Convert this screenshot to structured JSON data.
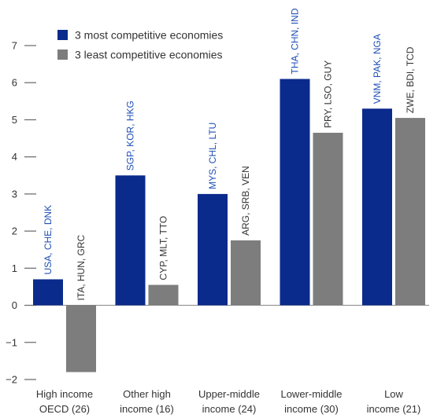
{
  "chart_data": {
    "type": "bar",
    "title": "",
    "xlabel": "",
    "ylabel": "",
    "ylim": [
      -2,
      7
    ],
    "yticks": [
      7,
      6,
      5,
      4,
      3,
      2,
      1,
      0,
      -1,
      -2
    ],
    "ytick_labels": [
      "7",
      "6",
      "5",
      "4",
      "3",
      "2",
      "1",
      "0",
      "−1",
      "−2"
    ],
    "grid": false,
    "legend_position": "top-left",
    "categories": [
      {
        "line1": "High income",
        "line2": "OECD (26)"
      },
      {
        "line1": "Other high",
        "line2": "income (16)"
      },
      {
        "line1": "Upper-middle",
        "line2": "income (24)"
      },
      {
        "line1": "Lower-middle",
        "line2": "income (30)"
      },
      {
        "line1": "Low",
        "line2": "income (21)"
      }
    ],
    "series": [
      {
        "name": "3 most competitive economies",
        "color": "#0a2a8c",
        "label_color": "#1f4fb5",
        "values": [
          0.7,
          3.5,
          3.0,
          6.1,
          5.3
        ],
        "labels": [
          "USA, CHE, DNK",
          "SGP, KOR, HKG",
          "MYS, CHL, LTU",
          "THA, CHN, IND",
          "VNM, PAK, NGA"
        ]
      },
      {
        "name": "3 least competitive economies",
        "color": "#7d7d7d",
        "label_color": "#333333",
        "values": [
          -1.8,
          0.55,
          1.75,
          4.65,
          5.05
        ],
        "labels": [
          "ITA, HUN, GRC",
          "CYP, MLT, TTO",
          "ARG, SRB, VEN",
          "PRY, LSO, GUY",
          "ZWE, BDI, TCD"
        ]
      }
    ]
  }
}
